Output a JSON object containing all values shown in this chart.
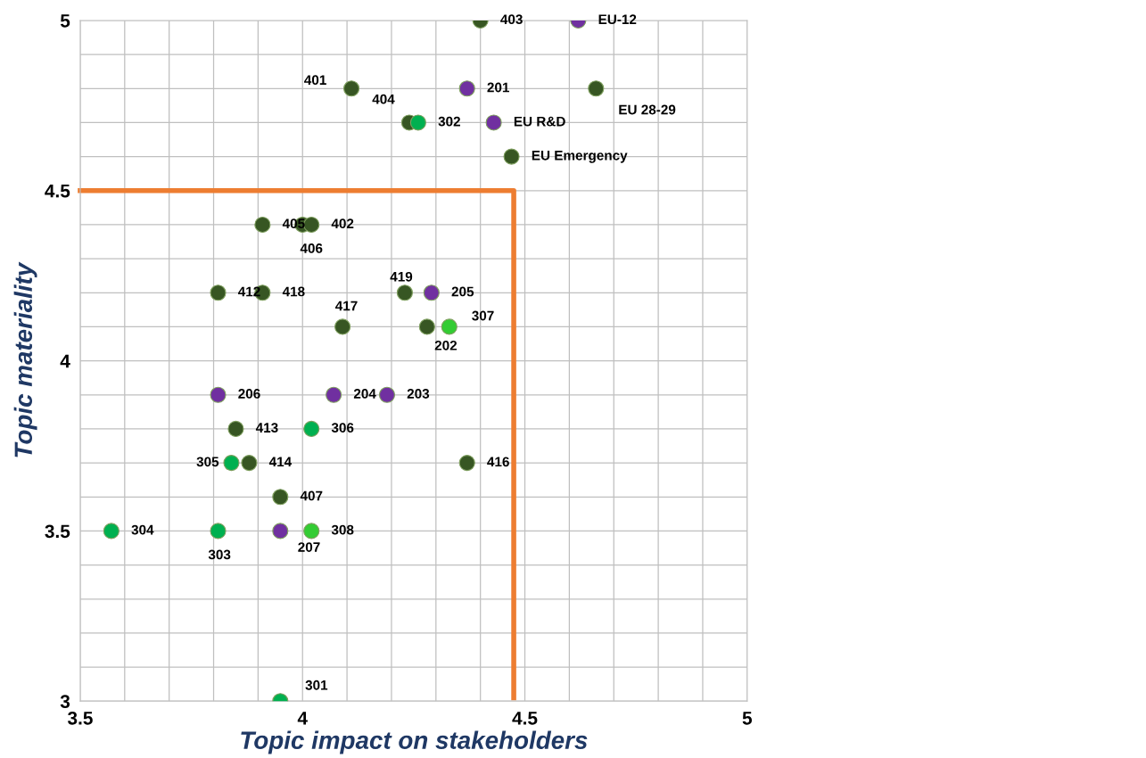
{
  "chart_data": {
    "type": "scatter",
    "xlabel": "Topic impact on stakeholders",
    "ylabel": "Topic materiality",
    "xlim": [
      3.5,
      5
    ],
    "ylim": [
      3,
      5
    ],
    "xticks": [
      3.5,
      {
        "value": 3.6,
        "label": null
      },
      {
        "value": 3.7,
        "label": null
      },
      {
        "value": 3.8,
        "label": null
      },
      {
        "value": 3.9,
        "label": null
      },
      4,
      {
        "value": 4.1,
        "label": null
      },
      {
        "value": 4.2,
        "label": null
      },
      {
        "value": 4.3,
        "label": null
      },
      {
        "value": 4.4,
        "label": null
      },
      4.5,
      {
        "value": 4.6,
        "label": null
      },
      {
        "value": 4.7,
        "label": null
      },
      {
        "value": 4.8,
        "label": null
      },
      {
        "value": 4.9,
        "label": null
      },
      5
    ],
    "yticks": [
      3,
      {
        "value": 3.1,
        "label": null
      },
      {
        "value": 3.2,
        "label": null
      },
      {
        "value": 3.3,
        "label": null
      },
      {
        "value": 3.4,
        "label": null
      },
      3.5,
      {
        "value": 3.6,
        "label": null
      },
      {
        "value": 3.7,
        "label": null
      },
      {
        "value": 3.8,
        "label": null
      },
      {
        "value": 3.9,
        "label": null
      },
      4,
      {
        "value": 4.1,
        "label": null
      },
      {
        "value": 4.2,
        "label": null
      },
      {
        "value": 4.3,
        "label": null
      },
      {
        "value": 4.4,
        "label": null
      },
      4.5,
      {
        "value": 4.6,
        "label": null
      },
      {
        "value": 4.7,
        "label": null
      },
      {
        "value": 4.8,
        "label": null
      },
      {
        "value": 4.9,
        "label": null
      },
      5
    ],
    "grid": true,
    "legend": false,
    "marker": "circle",
    "series": [
      {
        "color": "#375623",
        "x": [
          4.4,
          4.11,
          4.66,
          4.24,
          4.47,
          3.91,
          4.0,
          4.02,
          3.81,
          3.91,
          4.23,
          4.09,
          4.28,
          3.85,
          3.88,
          4.37,
          3.95
        ],
        "values": [
          5.0,
          4.8,
          4.8,
          4.7,
          4.6,
          4.4,
          4.4,
          4.4,
          4.2,
          4.2,
          4.2,
          4.1,
          4.1,
          3.8,
          3.7,
          3.7,
          3.6
        ]
      },
      {
        "color": "#7030a0",
        "x": [
          4.62,
          4.37,
          4.43,
          4.29,
          3.81,
          4.07,
          4.19,
          3.95
        ],
        "values": [
          5.0,
          4.8,
          4.7,
          4.2,
          3.9,
          3.9,
          3.9,
          3.5
        ]
      },
      {
        "color": "#00b050",
        "x": [
          4.26,
          4.02,
          3.84,
          3.57,
          3.81,
          3.95
        ],
        "values": [
          4.7,
          3.8,
          3.7,
          3.5,
          3.5,
          3.0
        ]
      },
      {
        "color": "#33cc33",
        "x": [
          4.33,
          4.02
        ],
        "values": [
          4.1,
          3.5
        ]
      },
      {
        "type": "line",
        "color": "#ed7d31",
        "marker": "none",
        "x": [
          3.5,
          4.475,
          4.475
        ],
        "values": [
          4.5,
          4.5,
          3.01
        ]
      }
    ],
    "annotations": [
      {
        "text": "403",
        "x": 4.4,
        "y": 5.0
      },
      {
        "text": "401",
        "x": 4.11,
        "y": 4.8
      },
      {
        "text": "EU 28-29",
        "x": 4.66,
        "y": 4.8
      },
      {
        "text": "404",
        "x": 4.24,
        "y": 4.7
      },
      {
        "text": "EU Emergency",
        "x": 4.47,
        "y": 4.6
      },
      {
        "text": "405",
        "x": 3.91,
        "y": 4.4
      },
      {
        "text": "406",
        "x": 4.0,
        "y": 4.4
      },
      {
        "text": "402",
        "x": 4.02,
        "y": 4.4
      },
      {
        "text": "412",
        "x": 3.81,
        "y": 4.2
      },
      {
        "text": "418",
        "x": 3.91,
        "y": 4.2
      },
      {
        "text": "419",
        "x": 4.23,
        "y": 4.2
      },
      {
        "text": "417",
        "x": 4.09,
        "y": 4.1
      },
      {
        "text": "202",
        "x": 4.28,
        "y": 4.1
      },
      {
        "text": "413",
        "x": 3.85,
        "y": 3.8
      },
      {
        "text": "414",
        "x": 3.88,
        "y": 3.7
      },
      {
        "text": "416",
        "x": 4.37,
        "y": 3.7
      },
      {
        "text": "407",
        "x": 3.95,
        "y": 3.6
      },
      {
        "text": "EU-12",
        "x": 4.62,
        "y": 5.0
      },
      {
        "text": "201",
        "x": 4.37,
        "y": 4.8
      },
      {
        "text": "EU R&D",
        "x": 4.43,
        "y": 4.7
      },
      {
        "text": "205",
        "x": 4.29,
        "y": 4.2
      },
      {
        "text": "206",
        "x": 3.81,
        "y": 3.9
      },
      {
        "text": "204",
        "x": 4.07,
        "y": 3.9
      },
      {
        "text": "203",
        "x": 4.19,
        "y": 3.9
      },
      {
        "text": "207",
        "x": 3.95,
        "y": 3.5
      },
      {
        "text": "302",
        "x": 4.26,
        "y": 4.7
      },
      {
        "text": "306",
        "x": 4.02,
        "y": 3.8
      },
      {
        "text": "305",
        "x": 3.84,
        "y": 3.7
      },
      {
        "text": "304",
        "x": 3.57,
        "y": 3.5
      },
      {
        "text": "303",
        "x": 3.81,
        "y": 3.5
      },
      {
        "text": "301",
        "x": 3.95,
        "y": 3.0
      },
      {
        "text": "307",
        "x": 4.33,
        "y": 4.1
      },
      {
        "text": "308",
        "x": 4.02,
        "y": 3.5
      }
    ]
  }
}
